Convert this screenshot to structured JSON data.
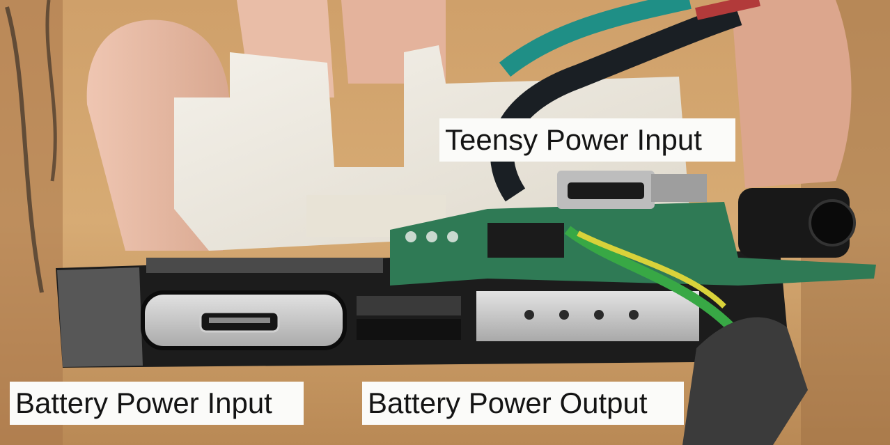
{
  "labels": {
    "teensy_power_input": "Teensy Power Input",
    "battery_power_input": "Battery Power Input",
    "battery_power_output": "Battery Power Output"
  },
  "colors": {
    "label_background": "#fbfbf9",
    "label_text": "#141414",
    "wood": "#c89a66",
    "printed_plastic": "#efece4",
    "battery_body": "#1c1c1c",
    "metal_plate": "#c9c9c9",
    "pcb_green": "#2f7a55",
    "wire_teal": "#1f8f86",
    "wire_green": "#38a845",
    "wire_yellow": "#d9d23a",
    "skin": "#e6b7a0"
  }
}
